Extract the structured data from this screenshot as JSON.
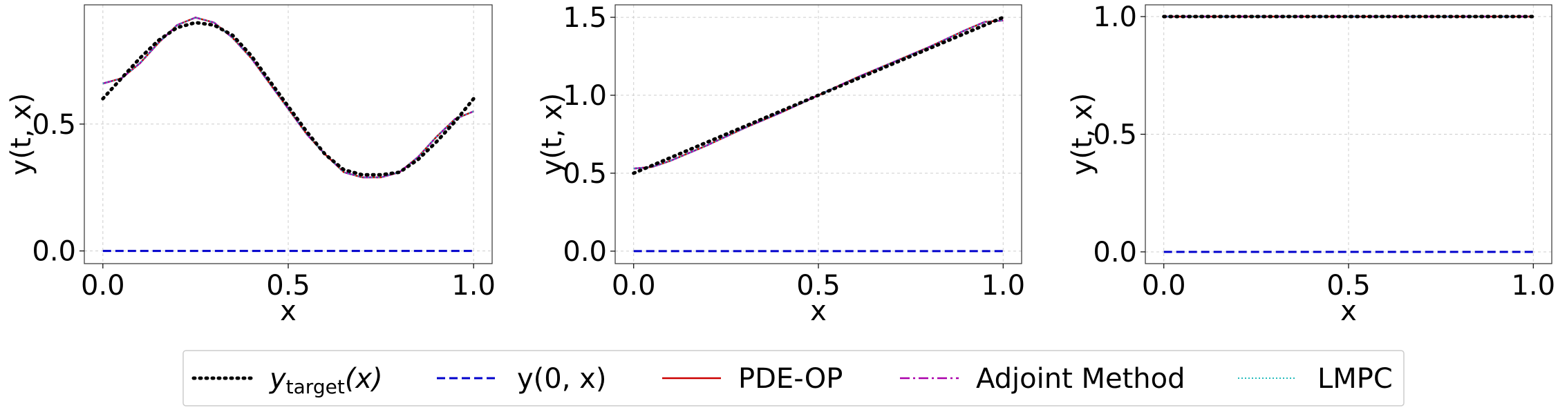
{
  "chart_data": [
    {
      "type": "line",
      "xlabel": "x",
      "ylabel": "y(t, x)",
      "xlim": [
        -0.05,
        1.05
      ],
      "ylim": [
        -0.05,
        0.97
      ],
      "xticks": [
        0.0,
        0.5,
        1.0
      ],
      "xtick_labels": [
        "0.0",
        "0.5",
        "1.0"
      ],
      "yticks": [
        0.0,
        0.5
      ],
      "ytick_labels": [
        "0.0",
        "0.5"
      ],
      "grid": true,
      "series": [
        {
          "key": "target",
          "x": [
            0.0,
            0.05,
            0.1,
            0.15,
            0.2,
            0.25,
            0.3,
            0.35,
            0.4,
            0.45,
            0.5,
            0.55,
            0.6,
            0.65,
            0.7,
            0.75,
            0.8,
            0.85,
            0.9,
            0.95,
            1.0
          ],
          "y": [
            0.6,
            0.68,
            0.76,
            0.83,
            0.88,
            0.9,
            0.89,
            0.85,
            0.77,
            0.67,
            0.57,
            0.47,
            0.38,
            0.32,
            0.3,
            0.3,
            0.31,
            0.36,
            0.43,
            0.51,
            0.6
          ]
        },
        {
          "key": "initial",
          "x": [
            0.0,
            1.0
          ],
          "y": [
            0.0,
            0.0
          ]
        },
        {
          "key": "pde_op",
          "x": [
            0.0,
            0.05,
            0.1,
            0.15,
            0.2,
            0.25,
            0.3,
            0.35,
            0.4,
            0.45,
            0.5,
            0.55,
            0.6,
            0.65,
            0.7,
            0.75,
            0.8,
            0.85,
            0.9,
            0.95,
            1.0
          ],
          "y": [
            0.66,
            0.68,
            0.74,
            0.82,
            0.89,
            0.92,
            0.9,
            0.84,
            0.76,
            0.66,
            0.56,
            0.46,
            0.38,
            0.31,
            0.29,
            0.29,
            0.31,
            0.37,
            0.45,
            0.52,
            0.55
          ]
        },
        {
          "key": "adjoint",
          "x": [
            0.0,
            0.05,
            0.1,
            0.15,
            0.2,
            0.25,
            0.3,
            0.35,
            0.4,
            0.45,
            0.5,
            0.55,
            0.6,
            0.65,
            0.7,
            0.75,
            0.8,
            0.85,
            0.9,
            0.95,
            1.0
          ],
          "y": [
            0.66,
            0.68,
            0.74,
            0.82,
            0.89,
            0.92,
            0.9,
            0.84,
            0.76,
            0.66,
            0.56,
            0.46,
            0.38,
            0.31,
            0.29,
            0.29,
            0.31,
            0.37,
            0.45,
            0.52,
            0.55
          ]
        },
        {
          "key": "lmpc",
          "x": [
            0.0,
            0.05,
            0.1,
            0.15,
            0.2,
            0.25,
            0.3,
            0.35,
            0.4,
            0.45,
            0.5,
            0.55,
            0.6,
            0.65,
            0.7,
            0.75,
            0.8,
            0.85,
            0.9,
            0.95,
            1.0
          ],
          "y": [
            0.66,
            0.68,
            0.74,
            0.82,
            0.89,
            0.92,
            0.9,
            0.84,
            0.76,
            0.66,
            0.56,
            0.46,
            0.38,
            0.31,
            0.29,
            0.29,
            0.31,
            0.37,
            0.45,
            0.52,
            0.55
          ]
        }
      ]
    },
    {
      "type": "line",
      "xlabel": "x",
      "ylabel": "y(t, x)",
      "xlim": [
        -0.05,
        1.05
      ],
      "ylim": [
        -0.08,
        1.58
      ],
      "xticks": [
        0.0,
        0.5,
        1.0
      ],
      "xtick_labels": [
        "0.0",
        "0.5",
        "1.0"
      ],
      "yticks": [
        0.0,
        0.5,
        1.0,
        1.5
      ],
      "ytick_labels": [
        "0.0",
        "0.5",
        "1.0",
        "1.5"
      ],
      "grid": true,
      "series": [
        {
          "key": "target",
          "x": [
            0.0,
            0.1,
            0.2,
            0.3,
            0.4,
            0.5,
            0.6,
            0.7,
            0.8,
            0.9,
            1.0
          ],
          "y": [
            0.5,
            0.6,
            0.7,
            0.8,
            0.9,
            1.0,
            1.1,
            1.2,
            1.3,
            1.4,
            1.5
          ]
        },
        {
          "key": "initial",
          "x": [
            0.0,
            1.0
          ],
          "y": [
            0.0,
            0.0
          ]
        },
        {
          "key": "pde_op",
          "x": [
            0.0,
            0.05,
            0.1,
            0.2,
            0.3,
            0.4,
            0.5,
            0.6,
            0.7,
            0.8,
            0.9,
            0.95,
            1.0
          ],
          "y": [
            0.53,
            0.54,
            0.58,
            0.68,
            0.79,
            0.89,
            1.0,
            1.11,
            1.21,
            1.31,
            1.42,
            1.47,
            1.48
          ]
        },
        {
          "key": "adjoint",
          "x": [
            0.0,
            0.05,
            0.1,
            0.2,
            0.3,
            0.4,
            0.5,
            0.6,
            0.7,
            0.8,
            0.9,
            0.95,
            1.0
          ],
          "y": [
            0.53,
            0.54,
            0.58,
            0.68,
            0.79,
            0.89,
            1.0,
            1.11,
            1.21,
            1.31,
            1.42,
            1.47,
            1.48
          ]
        },
        {
          "key": "lmpc",
          "x": [
            0.0,
            0.05,
            0.1,
            0.2,
            0.3,
            0.4,
            0.5,
            0.6,
            0.7,
            0.8,
            0.9,
            0.95,
            1.0
          ],
          "y": [
            0.53,
            0.54,
            0.58,
            0.68,
            0.79,
            0.89,
            1.0,
            1.11,
            1.21,
            1.31,
            1.42,
            1.47,
            1.48
          ]
        }
      ]
    },
    {
      "type": "line",
      "xlabel": "x",
      "ylabel": "y(t, x)",
      "xlim": [
        -0.05,
        1.05
      ],
      "ylim": [
        -0.05,
        1.05
      ],
      "xticks": [
        0.0,
        0.5,
        1.0
      ],
      "xtick_labels": [
        "0.0",
        "0.5",
        "1.0"
      ],
      "yticks": [
        0.0,
        0.5,
        1.0
      ],
      "ytick_labels": [
        "0.0",
        "0.5",
        "1.0"
      ],
      "grid": true,
      "series": [
        {
          "key": "target",
          "x": [
            0.0,
            1.0
          ],
          "y": [
            1.0,
            1.0
          ]
        },
        {
          "key": "initial",
          "x": [
            0.0,
            1.0
          ],
          "y": [
            0.0,
            0.0
          ]
        },
        {
          "key": "pde_op",
          "x": [
            0.0,
            1.0
          ],
          "y": [
            1.0,
            1.0
          ]
        },
        {
          "key": "adjoint",
          "x": [
            0.0,
            1.0
          ],
          "y": [
            1.0,
            1.0
          ]
        },
        {
          "key": "lmpc",
          "x": [
            0.0,
            1.0
          ],
          "y": [
            1.0,
            1.0
          ]
        }
      ]
    }
  ],
  "legend": {
    "placement": "bottom-center",
    "entries": [
      {
        "key": "target",
        "name": "y",
        "sub": "target",
        "suffix": "(x)",
        "color": "#000000",
        "style": "dotted"
      },
      {
        "key": "initial",
        "name": "y(0, x)",
        "color": "#0000cc",
        "style": "dashed"
      },
      {
        "key": "pde_op",
        "name": "PDE-OP",
        "color": "#cc0000",
        "style": "solid"
      },
      {
        "key": "adjoint",
        "name": "Adjoint Method",
        "color": "#aa00aa",
        "style": "dashdot"
      },
      {
        "key": "lmpc",
        "name": "LMPC",
        "color": "#22bbbb",
        "style": "dotted-fine"
      }
    ]
  }
}
